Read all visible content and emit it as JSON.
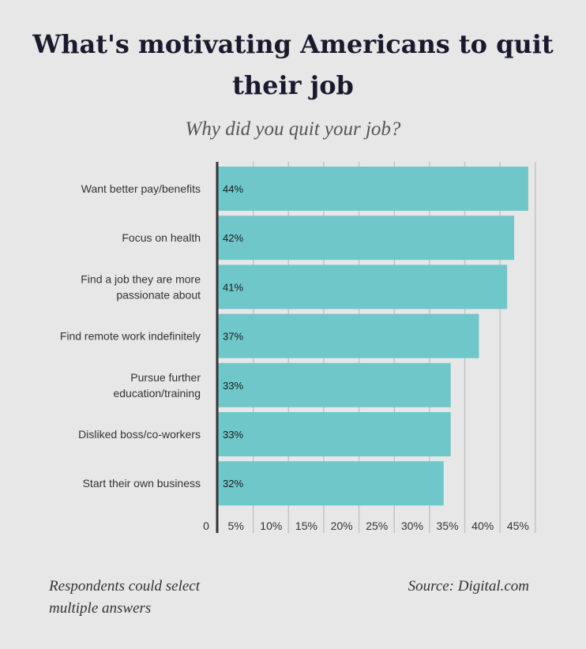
{
  "chart_data": {
    "type": "bar",
    "orientation": "horizontal",
    "title": "What's motivating Americans to quit their job",
    "subtitle": "Why did you quit your job?",
    "categories": [
      [
        "Want better pay/benefits"
      ],
      [
        "Focus on health"
      ],
      [
        "Find a job they are more",
        "passionate about"
      ],
      [
        "Find remote work indefinitely"
      ],
      [
        "Pursue further",
        "education/training"
      ],
      [
        "Disliked boss/co-workers"
      ],
      [
        "Start their own business"
      ]
    ],
    "values": [
      44,
      42,
      41,
      37,
      33,
      33,
      32
    ],
    "value_labels": [
      "44%",
      "42%",
      "41%",
      "37%",
      "33%",
      "33%",
      "32%"
    ],
    "xlim": [
      0,
      45
    ],
    "x_ticks": [
      0,
      5,
      10,
      15,
      20,
      25,
      30,
      35,
      40,
      45
    ],
    "x_tick_labels": [
      "0",
      "5%",
      "10%",
      "15%",
      "20%",
      "25%",
      "30%",
      "35%",
      "40%",
      "45%"
    ],
    "grid": true,
    "bar_color": "#6fc7ca",
    "gridline_color": "#c4c4c4",
    "axis_color": "#333333"
  },
  "footer": {
    "note": "Respondents could select multiple answers",
    "source": "Source: Digital.com"
  }
}
